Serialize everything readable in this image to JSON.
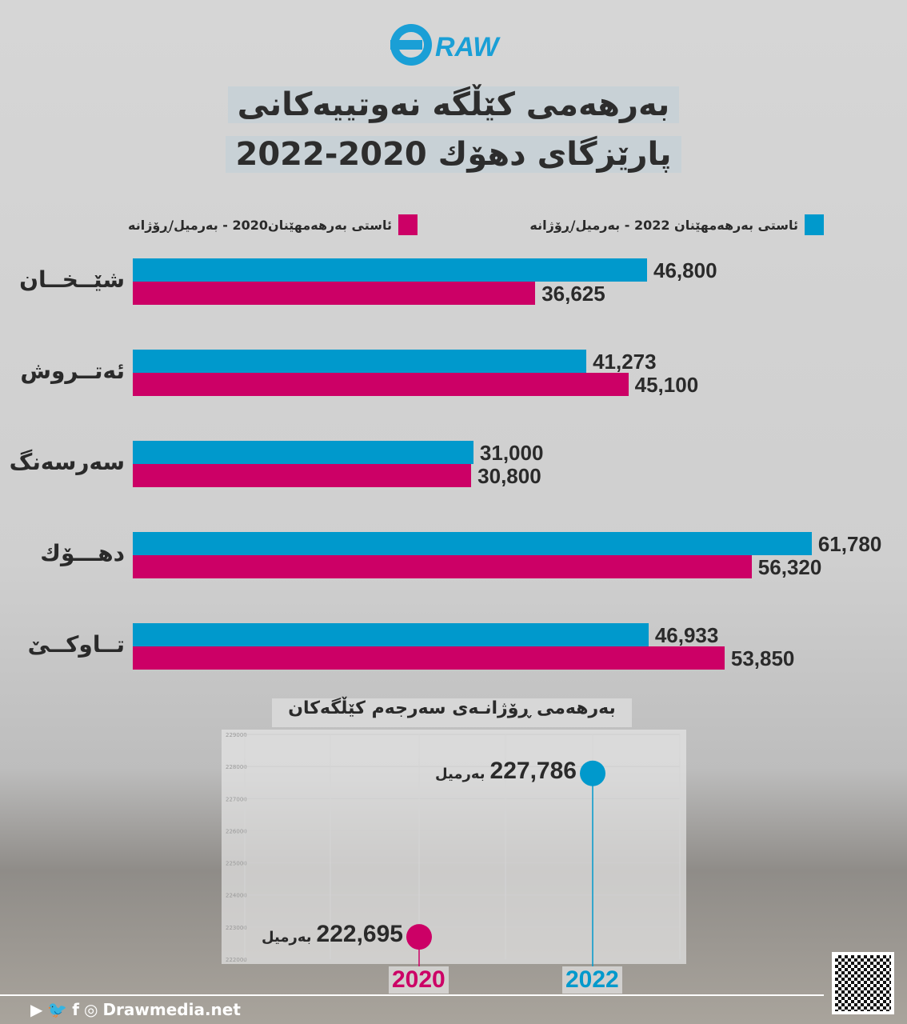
{
  "brand": {
    "logo": "DRAW",
    "website": "Drawmedia.net",
    "social_icons": [
      "youtube-icon",
      "twitter-icon",
      "facebook-icon",
      "instagram-icon"
    ]
  },
  "title": {
    "line1": "بەرهەمی کێڵگە نەوتییەکانی",
    "line2": "پارێزگای دهۆك 2020-2022"
  },
  "colors": {
    "y2022": "#0099cc",
    "y2020": "#cc0066"
  },
  "chart_data": [
    {
      "type": "bar",
      "orientation": "horizontal",
      "categories": [
        "شێــخــان",
        "ئەتــروش",
        "سەرسەنگ",
        "دهـــۆك",
        "تــاوکــێ"
      ],
      "series": [
        {
          "name": "ئاستی بەرهەمهێنان 2022 - بەرمیل/ڕۆژانە",
          "values": [
            46800,
            41273,
            31000,
            61780,
            46933
          ],
          "labels": [
            "46,800",
            "41,273",
            "31,000",
            "61,780",
            "46,933"
          ]
        },
        {
          "name": "ئاستی بەرهەمهێنان2020 - بەرمیل/ڕۆژانە",
          "values": [
            36625,
            45100,
            30800,
            56320,
            53850
          ],
          "labels": [
            "36,625",
            "45,100",
            "30,800",
            "56,320",
            "53,850"
          ]
        }
      ],
      "legend": "top"
    },
    {
      "type": "scatter",
      "title": "بەرهەمی ڕۆژانـەی سەرجەم کێڵگەکان",
      "x": [
        "2020",
        "2022"
      ],
      "values": [
        222695,
        227786
      ],
      "labels": [
        "222,695",
        "227,786"
      ],
      "unit": "بەرمیل",
      "ylim": [
        222000,
        229000
      ],
      "yticks": [
        "222000",
        "223000",
        "224000",
        "225000",
        "226000",
        "227000",
        "228000",
        "229000"
      ],
      "grid": true
    }
  ]
}
